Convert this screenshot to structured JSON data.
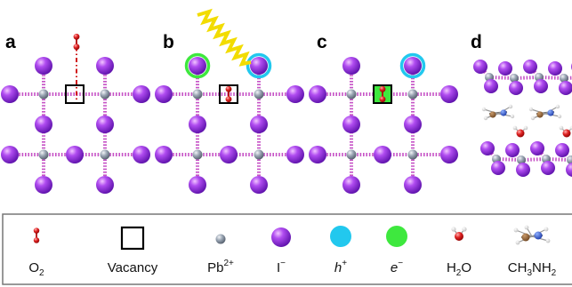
{
  "panels": [
    {
      "label": "a"
    },
    {
      "label": "b"
    },
    {
      "label": "c"
    },
    {
      "label": "d"
    }
  ],
  "legend": {
    "o2": {
      "base": "O",
      "sub": "2"
    },
    "vacancy": {
      "text": "Vacancy"
    },
    "pb": {
      "base": "Pb",
      "sup": "2+"
    },
    "iodide": {
      "base": "I",
      "sup": "−"
    },
    "hole": {
      "base": "h",
      "sup": "+"
    },
    "electron": {
      "base": "e",
      "sup": "−"
    },
    "water": {
      "base": "H",
      "sub": "2",
      "tail": "O"
    },
    "methylammonium": {
      "base": "CH",
      "sub1": "3",
      "mid": "NH",
      "sub2": "2"
    }
  },
  "colors": {
    "iodide": "#8a2be2",
    "lead": "#8a95a5",
    "bond": "#c653c6",
    "hole": "#22c8ee",
    "electron": "#3ee83e",
    "oxygen": "#d81e1e",
    "photon": "#f5e100",
    "vacancy_box": "#000000",
    "legend_border": "#777777"
  }
}
